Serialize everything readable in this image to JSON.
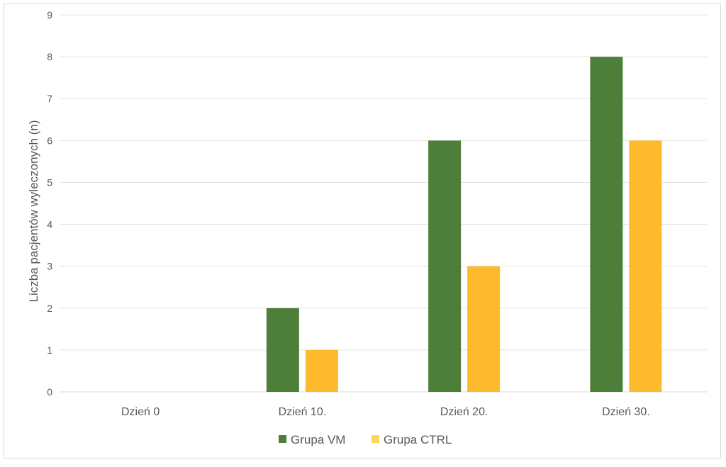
{
  "chart_data": {
    "type": "bar",
    "title": "",
    "xlabel": "",
    "ylabel": "Liczba pacjentów wyleczonych (n)",
    "categories": [
      "Dzień 0",
      "Dzień 10.",
      "Dzień 20.",
      "Dzień 30."
    ],
    "series": [
      {
        "name": "Grupa VM",
        "values": [
          0,
          2,
          6,
          8
        ],
        "color": "#4E7F3A"
      },
      {
        "name": "Grupa CTRL",
        "values": [
          0,
          1,
          3,
          6
        ],
        "color": "#FDBA2C"
      }
    ],
    "ylim": [
      0,
      9
    ],
    "yticks": [
      "0",
      "1",
      "2",
      "3",
      "4",
      "5",
      "6",
      "7",
      "8",
      "9"
    ],
    "grid": true,
    "legend": "bottom-center"
  }
}
